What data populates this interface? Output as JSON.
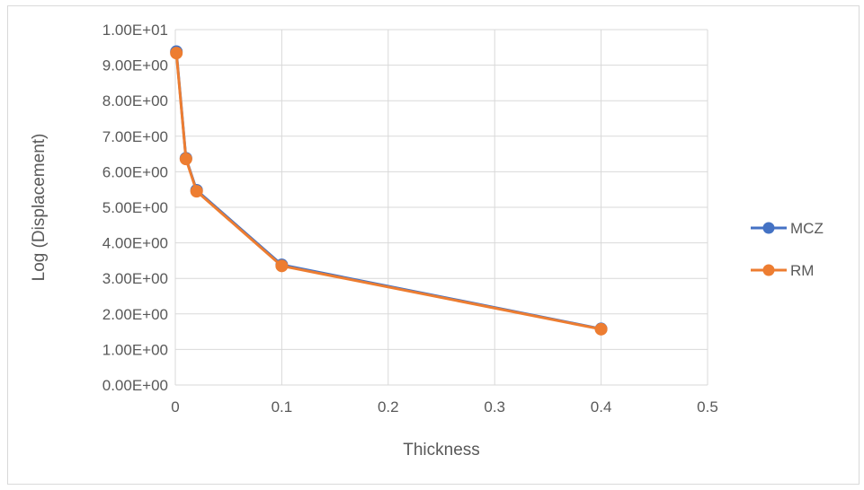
{
  "chart_data": {
    "type": "scatter",
    "xlabel": "Thickness",
    "ylabel": "Log (Displacement)",
    "xlim": [
      0,
      0.5
    ],
    "ylim": [
      0,
      10
    ],
    "x_ticks": [
      0,
      0.1,
      0.2,
      0.3,
      0.4,
      0.5
    ],
    "x_tick_labels": [
      "0",
      "0.1",
      "0.2",
      "0.3",
      "0.4",
      "0.5"
    ],
    "y_ticks": [
      0,
      1,
      2,
      3,
      4,
      5,
      6,
      7,
      8,
      9,
      10
    ],
    "y_tick_labels": [
      "0.00E+00",
      "1.00E+00",
      "2.00E+00",
      "3.00E+00",
      "4.00E+00",
      "5.00E+00",
      "6.00E+00",
      "7.00E+00",
      "8.00E+00",
      "9.00E+00",
      "1.00E+01"
    ],
    "grid": true,
    "legend_position": "right",
    "series": [
      {
        "name": "MCZ",
        "color": "#4472C4",
        "x": [
          0.001,
          0.01,
          0.02,
          0.1,
          0.4
        ],
        "y": [
          9.38,
          6.38,
          5.48,
          3.38,
          1.58
        ]
      },
      {
        "name": "RM",
        "color": "#ED7D31",
        "x": [
          0.001,
          0.01,
          0.02,
          0.1,
          0.4
        ],
        "y": [
          9.34,
          6.36,
          5.45,
          3.35,
          1.57
        ]
      }
    ]
  }
}
